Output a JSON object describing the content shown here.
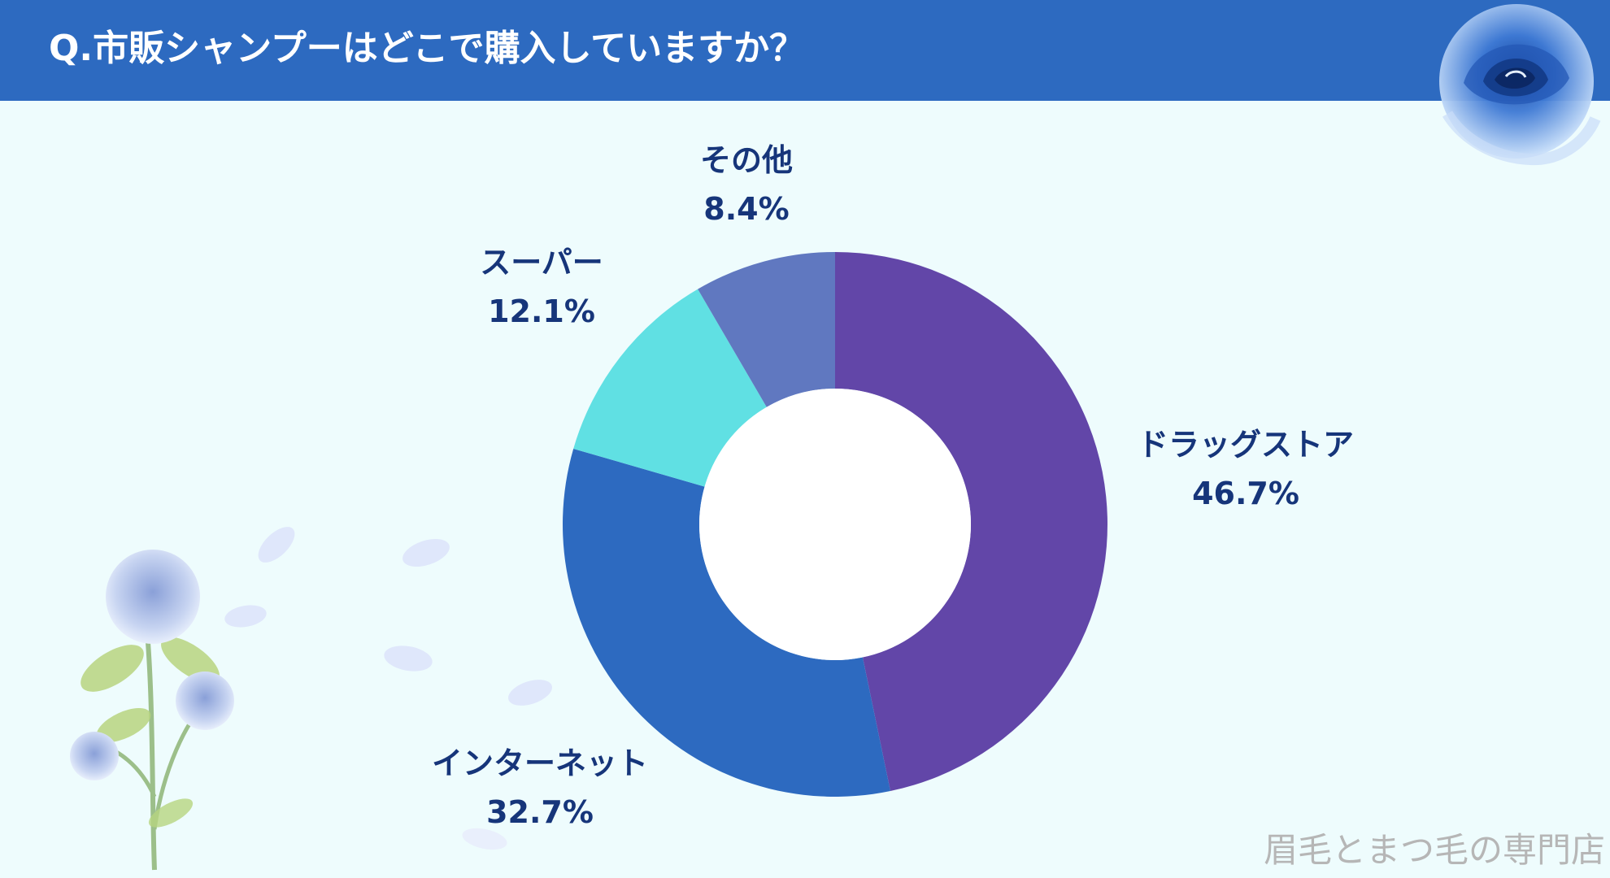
{
  "header": {
    "title": "Q.市販シャンプーはどこで購入していますか？"
  },
  "watermark": "眉毛とまつ毛の専門店",
  "colors": {
    "background": "#eefcfd",
    "header": "#2d6ac0",
    "label_text": "#16357a",
    "drugstore": "#6246a8",
    "internet": "#2d6ac0",
    "supermarket": "#60e0e3",
    "other": "#6078c0"
  },
  "decorations": [
    "blue-rose-top-right",
    "blue-rose-bottom-left",
    "rose-petals"
  ],
  "chart_data": {
    "type": "pie",
    "donut": true,
    "slices": [
      {
        "label": "ドラッグストア",
        "value": 46.7,
        "value_label": "46.7%",
        "color": "#6246a8"
      },
      {
        "label": "インターネット",
        "value": 32.7,
        "value_label": "32.7%",
        "color": "#2d6ac0"
      },
      {
        "label": "スーパー",
        "value": 12.1,
        "value_label": "12.1%",
        "color": "#60e0e3"
      },
      {
        "label": "その他",
        "value": 8.4,
        "value_label": "8.4%",
        "color": "#6078c0"
      }
    ],
    "legend": "none"
  }
}
